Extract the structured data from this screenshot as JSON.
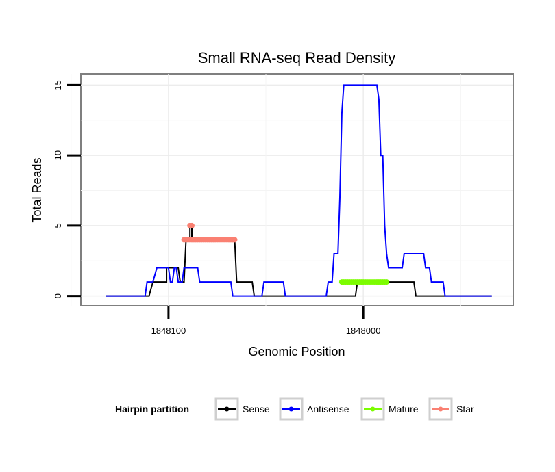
{
  "chart_data": {
    "type": "line",
    "title": "Small RNA-seq Read Density",
    "xlabel": "Genomic Position",
    "ylabel": "Total Reads",
    "x_reversed": true,
    "xlim": [
      1848145,
      1847923
    ],
    "ylim": [
      -0.7,
      15.8
    ],
    "x_ticks": [
      1848100,
      1848000
    ],
    "x_tick_labels": [
      "1848100",
      "1848000"
    ],
    "y_ticks": [
      0,
      5,
      10,
      15
    ],
    "y_tick_labels": [
      "0",
      "5",
      "10",
      "15"
    ],
    "grid": true,
    "legend": {
      "title": "Hairpin partition",
      "position": "bottom",
      "entries": [
        "Sense",
        "Antisense",
        "Mature",
        "Star"
      ]
    },
    "series": [
      {
        "name": "Sense",
        "color": "#000000",
        "style": "step",
        "points": [
          [
            1848132,
            0
          ],
          [
            1848110,
            0
          ],
          [
            1848108,
            1
          ],
          [
            1848101,
            1
          ],
          [
            1848101,
            2
          ],
          [
            1848095,
            2
          ],
          [
            1848094,
            1
          ],
          [
            1848092,
            1
          ],
          [
            1848091,
            4
          ],
          [
            1848089,
            4
          ],
          [
            1848089,
            5
          ],
          [
            1848088,
            5
          ],
          [
            1848088,
            4
          ],
          [
            1848066,
            4
          ],
          [
            1848065,
            1
          ],
          [
            1848057,
            1
          ],
          [
            1848056,
            0
          ],
          [
            1848004,
            0
          ],
          [
            1848003,
            1
          ],
          [
            1847974,
            1
          ],
          [
            1847973,
            0
          ],
          [
            1847954,
            0
          ],
          [
            1847953,
            0
          ],
          [
            1847934,
            0
          ]
        ]
      },
      {
        "name": "Antisense",
        "color": "#0000ff",
        "style": "step",
        "points": [
          [
            1848132,
            0
          ],
          [
            1848112,
            0
          ],
          [
            1848111,
            1
          ],
          [
            1848108,
            1
          ],
          [
            1848106,
            2
          ],
          [
            1848100,
            2
          ],
          [
            1848099,
            1
          ],
          [
            1848098,
            1
          ],
          [
            1848097,
            2
          ],
          [
            1848096,
            2
          ],
          [
            1848095,
            1
          ],
          [
            1848093,
            1
          ],
          [
            1848092,
            2
          ],
          [
            1848085,
            2
          ],
          [
            1848084,
            1
          ],
          [
            1848068,
            1
          ],
          [
            1848067,
            0
          ],
          [
            1848052,
            0
          ],
          [
            1848051,
            1
          ],
          [
            1848041,
            1
          ],
          [
            1848040,
            0
          ],
          [
            1848019,
            0
          ],
          [
            1848018,
            1
          ],
          [
            1848016,
            1
          ],
          [
            1848015,
            3
          ],
          [
            1848013,
            3
          ],
          [
            1848012,
            7
          ],
          [
            1848011,
            13
          ],
          [
            1848010,
            15
          ],
          [
            1847993,
            15
          ],
          [
            1847992,
            14
          ],
          [
            1847991,
            10
          ],
          [
            1847990,
            10
          ],
          [
            1847989,
            5
          ],
          [
            1847988,
            3
          ],
          [
            1847987,
            2
          ],
          [
            1847980,
            2
          ],
          [
            1847979,
            3
          ],
          [
            1847969,
            3
          ],
          [
            1847968,
            2
          ],
          [
            1847966,
            2
          ],
          [
            1847965,
            1
          ],
          [
            1847959,
            1
          ],
          [
            1847958,
            0
          ],
          [
            1847934,
            0
          ]
        ]
      },
      {
        "name": "Mature",
        "color": "#7cfc00",
        "style": "markers",
        "x_start": 1848011,
        "x_end": 1847988,
        "y": 1
      },
      {
        "name": "Star",
        "color": "#fa8072",
        "style": "markers",
        "x_start": 1848092,
        "x_end": 1848066,
        "y": 4,
        "extra_points": [
          [
            1848089,
            5
          ],
          [
            1848088,
            5
          ]
        ]
      }
    ]
  }
}
